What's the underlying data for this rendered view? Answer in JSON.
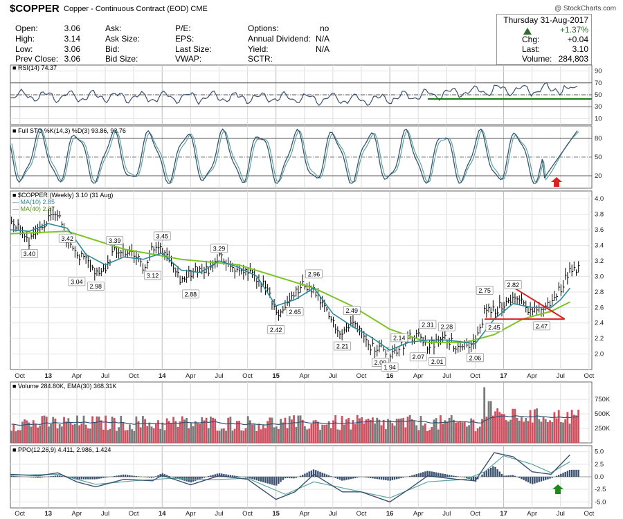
{
  "header": {
    "symbol": "$COPPER",
    "description": "Copper - Continuous Contract (EOD)",
    "exchange": "CME",
    "watermark": "@ StockCharts.com",
    "date": "Thursday  31-Aug-2017",
    "change_pct": "+1.37%",
    "chg_label": "Chg:",
    "chg": "+0.04",
    "last_label": "Last:",
    "last": "3.10",
    "volume_label": "Volume:",
    "volume": "284,803",
    "up_color": "#2a6e2a",
    "fields": [
      {
        "label": "Open:",
        "value": "3.06"
      },
      {
        "label": "High:",
        "value": "3.14"
      },
      {
        "label": "Low:",
        "value": "3.06"
      },
      {
        "label": "Prev Close:",
        "value": "3.06"
      },
      {
        "label": "Ask:",
        "value": ""
      },
      {
        "label": "Ask Size:",
        "value": ""
      },
      {
        "label": "Bid:",
        "value": ""
      },
      {
        "label": "Bid Size:",
        "value": ""
      },
      {
        "label": "P/E:",
        "value": ""
      },
      {
        "label": "EPS:",
        "value": ""
      },
      {
        "label": "Last Size:",
        "value": ""
      },
      {
        "label": "VWAP:",
        "value": ""
      },
      {
        "label": "Options:",
        "value": "no"
      },
      {
        "label": "Annual Dividend:",
        "value": "N/A"
      },
      {
        "label": "Yield:",
        "value": "N/A"
      },
      {
        "label": "SCTR:",
        "value": ""
      }
    ]
  },
  "chart_data": [
    {
      "type": "line",
      "panel": "rsi",
      "legend": "RSI(14) 74.37",
      "series": [
        {
          "name": "RSI(14)",
          "color": "#3a5170",
          "last": 74.37
        }
      ],
      "yticks": [
        10,
        30,
        50,
        70,
        90
      ],
      "ylim": [
        0,
        100
      ],
      "reference_lines": [
        {
          "y": 70,
          "style": "solid"
        },
        {
          "y": 50,
          "style": "dash-dot"
        },
        {
          "y": 30,
          "style": "solid"
        }
      ],
      "annotation": {
        "type": "support-line",
        "color": "#1a7a1a",
        "y": 43,
        "from": "2016-05",
        "to": "2017-08"
      }
    },
    {
      "type": "line",
      "panel": "stochastic",
      "legend": "Full STO %K(14,3) %D(3) 93.86, 92.76",
      "series": [
        {
          "name": "%K(14,3)",
          "color": "#3a5170",
          "last": 93.86
        },
        {
          "name": "%D(3)",
          "color": "#5aa5a0",
          "last": 92.76
        }
      ],
      "yticks": [
        20,
        50,
        80
      ],
      "ylim": [
        0,
        100
      ],
      "annotation": {
        "type": "up-arrow",
        "color": "#e02020",
        "at": "2017-06"
      }
    },
    {
      "type": "line",
      "panel": "price",
      "legend_title": "$COPPER (Weekly) 3.10 (31 Aug)",
      "legend_ma10": "MA(10) 2.85",
      "legend_ma40": "MA(40) 2.67",
      "ylim": [
        1.8,
        4.1
      ],
      "yticks": [
        "4.0",
        "3.8",
        "3.6",
        "3.4",
        "3.2",
        "3.0",
        "2.8",
        "2.6",
        "2.4",
        "2.2",
        "2.0"
      ],
      "x_range": [
        "2012-09",
        "2017-10"
      ],
      "xticks": [
        "Oct",
        "13",
        "Apr",
        "Jul",
        "Oct",
        "14",
        "Apr",
        "Jul",
        "Oct",
        "15",
        "Apr",
        "Jul",
        "Oct",
        "16",
        "Apr",
        "Jul",
        "Oct",
        "17",
        "Apr",
        "Jul",
        "Oct"
      ],
      "price_color": "#000000",
      "ma10_color": "#2a8a9a",
      "ma40_color": "#7ac520",
      "price_path": [
        [
          "2012-09",
          3.72
        ],
        [
          "2012-10",
          3.62
        ],
        [
          "2012-11",
          3.45
        ],
        [
          "2012-12",
          3.62
        ],
        [
          "2013-01",
          3.72
        ],
        [
          "2013-02",
          3.8
        ],
        [
          "2013-03",
          3.45
        ],
        [
          "2013-04",
          3.25
        ],
        [
          "2013-05",
          3.3
        ],
        [
          "2013-06",
          3.04
        ],
        [
          "2013-07",
          3.12
        ],
        [
          "2013-08",
          3.32
        ],
        [
          "2013-09",
          3.3
        ],
        [
          "2013-10",
          3.28
        ],
        [
          "2013-11",
          3.12
        ],
        [
          "2013-12",
          3.35
        ],
        [
          "2014-01",
          3.35
        ],
        [
          "2014-02",
          3.22
        ],
        [
          "2014-03",
          2.95
        ],
        [
          "2014-04",
          3.05
        ],
        [
          "2014-05",
          3.1
        ],
        [
          "2014-06",
          3.08
        ],
        [
          "2014-07",
          3.25
        ],
        [
          "2014-08",
          3.18
        ],
        [
          "2014-09",
          3.05
        ],
        [
          "2014-10",
          3.05
        ],
        [
          "2014-11",
          2.95
        ],
        [
          "2014-12",
          2.85
        ],
        [
          "2015-01",
          2.5
        ],
        [
          "2015-02",
          2.6
        ],
        [
          "2015-03",
          2.78
        ],
        [
          "2015-04",
          2.9
        ],
        [
          "2015-05",
          2.8
        ],
        [
          "2015-06",
          2.6
        ],
        [
          "2015-07",
          2.4
        ],
        [
          "2015-08",
          2.28
        ],
        [
          "2015-09",
          2.4
        ],
        [
          "2015-10",
          2.35
        ],
        [
          "2015-11",
          2.1
        ],
        [
          "2015-12",
          2.08
        ],
        [
          "2016-01",
          2.02
        ],
        [
          "2016-02",
          2.08
        ],
        [
          "2016-03",
          2.2
        ],
        [
          "2016-04",
          2.22
        ],
        [
          "2016-05",
          2.1
        ],
        [
          "2016-06",
          2.15
        ],
        [
          "2016-07",
          2.2
        ],
        [
          "2016-08",
          2.1
        ],
        [
          "2016-09",
          2.15
        ],
        [
          "2016-10",
          2.12
        ],
        [
          "2016-11",
          2.55
        ],
        [
          "2016-12",
          2.55
        ],
        [
          "2017-01",
          2.65
        ],
        [
          "2017-02",
          2.72
        ],
        [
          "2017-03",
          2.65
        ],
        [
          "2017-04",
          2.55
        ],
        [
          "2017-05",
          2.58
        ],
        [
          "2017-06",
          2.65
        ],
        [
          "2017-07",
          2.85
        ],
        [
          "2017-08",
          3.1
        ]
      ],
      "ma10_path": [
        [
          "2012-09",
          3.6
        ],
        [
          "2012-11",
          3.58
        ],
        [
          "2013-01",
          3.68
        ],
        [
          "2013-03",
          3.62
        ],
        [
          "2013-05",
          3.28
        ],
        [
          "2013-07",
          3.15
        ],
        [
          "2013-09",
          3.25
        ],
        [
          "2013-11",
          3.22
        ],
        [
          "2014-01",
          3.3
        ],
        [
          "2014-03",
          3.08
        ],
        [
          "2014-05",
          3.05
        ],
        [
          "2014-07",
          3.2
        ],
        [
          "2014-09",
          3.12
        ],
        [
          "2014-11",
          3.0
        ],
        [
          "2015-01",
          2.62
        ],
        [
          "2015-03",
          2.7
        ],
        [
          "2015-05",
          2.85
        ],
        [
          "2015-07",
          2.52
        ],
        [
          "2015-09",
          2.36
        ],
        [
          "2015-11",
          2.22
        ],
        [
          "2016-01",
          2.05
        ],
        [
          "2016-03",
          2.15
        ],
        [
          "2016-05",
          2.18
        ],
        [
          "2016-07",
          2.18
        ],
        [
          "2016-09",
          2.15
        ],
        [
          "2016-10",
          2.13
        ],
        [
          "2016-12",
          2.45
        ],
        [
          "2017-02",
          2.65
        ],
        [
          "2017-04",
          2.6
        ],
        [
          "2017-06",
          2.6
        ],
        [
          "2017-07",
          2.7
        ],
        [
          "2017-08",
          2.85
        ]
      ],
      "ma40_path": [
        [
          "2012-09",
          3.55
        ],
        [
          "2013-03",
          3.58
        ],
        [
          "2013-09",
          3.35
        ],
        [
          "2014-03",
          3.22
        ],
        [
          "2014-09",
          3.15
        ],
        [
          "2015-01",
          3.0
        ],
        [
          "2015-05",
          2.85
        ],
        [
          "2015-09",
          2.62
        ],
        [
          "2016-01",
          2.32
        ],
        [
          "2016-05",
          2.15
        ],
        [
          "2016-09",
          2.15
        ],
        [
          "2016-12",
          2.25
        ],
        [
          "2017-03",
          2.45
        ],
        [
          "2017-06",
          2.55
        ],
        [
          "2017-08",
          2.67
        ]
      ],
      "peak_labels": [
        {
          "text": "3.40",
          "x": "2012-11",
          "y": 3.4,
          "pos": "below"
        },
        {
          "text": "3.42",
          "x": "2013-03",
          "y": 3.42,
          "pos": "above"
        },
        {
          "text": "3.04",
          "x": "2013-04",
          "y": 3.04,
          "pos": "below"
        },
        {
          "text": "2.98",
          "x": "2013-06",
          "y": 2.98,
          "pos": "below"
        },
        {
          "text": "3.39",
          "x": "2013-08",
          "y": 3.39,
          "pos": "above"
        },
        {
          "text": "3.12",
          "x": "2013-12",
          "y": 3.12,
          "pos": "below"
        },
        {
          "text": "3.45",
          "x": "2014-01",
          "y": 3.45,
          "pos": "above"
        },
        {
          "text": "2.88",
          "x": "2014-04",
          "y": 2.88,
          "pos": "below"
        },
        {
          "text": "3.29",
          "x": "2014-07",
          "y": 3.29,
          "pos": "above"
        },
        {
          "text": "2.42",
          "x": "2015-01",
          "y": 2.42,
          "pos": "below"
        },
        {
          "text": "2.65",
          "x": "2015-03",
          "y": 2.65,
          "pos": "below"
        },
        {
          "text": "2.96",
          "x": "2015-05",
          "y": 2.96,
          "pos": "above"
        },
        {
          "text": "2.49",
          "x": "2015-09",
          "y": 2.49,
          "pos": "above"
        },
        {
          "text": "2.21",
          "x": "2015-08",
          "y": 2.21,
          "pos": "below"
        },
        {
          "text": "2.00",
          "x": "2015-12",
          "y": 2.0,
          "pos": "below"
        },
        {
          "text": "1.94",
          "x": "2016-01",
          "y": 1.94,
          "pos": "below"
        },
        {
          "text": "2.14",
          "x": "2016-02",
          "y": 2.14,
          "pos": "above"
        },
        {
          "text": "2.07",
          "x": "2016-04",
          "y": 2.07,
          "pos": "below"
        },
        {
          "text": "2.31",
          "x": "2016-05",
          "y": 2.31,
          "pos": "above"
        },
        {
          "text": "2.01",
          "x": "2016-06",
          "y": 2.01,
          "pos": "below"
        },
        {
          "text": "2.28",
          "x": "2016-07",
          "y": 2.28,
          "pos": "above"
        },
        {
          "text": "2.06",
          "x": "2016-10",
          "y": 2.06,
          "pos": "below"
        },
        {
          "text": "2.75",
          "x": "2016-11",
          "y": 2.75,
          "pos": "above"
        },
        {
          "text": "2.45",
          "x": "2016-12",
          "y": 2.45,
          "pos": "below"
        },
        {
          "text": "2.82",
          "x": "2017-02",
          "y": 2.82,
          "pos": "above"
        },
        {
          "text": "2.47",
          "x": "2017-05",
          "y": 2.47,
          "pos": "below"
        }
      ],
      "trend_lines": [
        {
          "color": "#e02020",
          "from": [
            "2017-02",
            2.86
          ],
          "to": [
            "2017-07",
            2.45
          ]
        },
        {
          "color": "#e02020",
          "from": [
            "2016-11",
            2.45
          ],
          "to": [
            "2017-07",
            2.45
          ]
        }
      ]
    },
    {
      "type": "bar",
      "panel": "volume",
      "legend": "Volume 284.80K, EMA(30) 368.31K",
      "series": [
        {
          "name": "Volume",
          "up_color": "#7a7a7a",
          "down_color": "#d05060"
        },
        {
          "name": "EMA(30)",
          "color": "#3a5170"
        }
      ],
      "ylim": [
        0,
        1050
      ],
      "yticks": [
        "750K",
        "500K",
        "250K"
      ],
      "spike": {
        "x": "2016-11",
        "value": 960
      }
    },
    {
      "type": "line",
      "panel": "ppo",
      "legend": "PPO(12,26,9) 4.411, 2.986, 1.424",
      "series": [
        {
          "name": "PPO(12,26,9)",
          "color": "#3a5170",
          "last": 4.411
        },
        {
          "name": "Signal",
          "color": "#5aa5a0",
          "last": 2.986
        },
        {
          "name": "Histogram",
          "color": "#3a5170",
          "last": 1.424
        }
      ],
      "ylim": [
        -6.2,
        6.2
      ],
      "yticks": [
        "5.0",
        "2.5",
        "0.0",
        "-2.5",
        "-5.0"
      ],
      "ppo_path": [
        [
          "2012-09",
          0.5
        ],
        [
          "2012-12",
          0.2
        ],
        [
          "2013-02",
          0.8
        ],
        [
          "2013-04",
          -1.0
        ],
        [
          "2013-06",
          -2.0
        ],
        [
          "2013-09",
          -0.5
        ],
        [
          "2013-12",
          -0.8
        ],
        [
          "2014-01",
          0.3
        ],
        [
          "2014-04",
          -1.6
        ],
        [
          "2014-07",
          0.2
        ],
        [
          "2014-10",
          -0.5
        ],
        [
          "2015-01",
          -4.5
        ],
        [
          "2015-03",
          -3.0
        ],
        [
          "2015-05",
          0.5
        ],
        [
          "2015-08",
          -3.0
        ],
        [
          "2015-10",
          -3.0
        ],
        [
          "2016-01",
          -5.0
        ],
        [
          "2016-03",
          -2.5
        ],
        [
          "2016-05",
          0.2
        ],
        [
          "2016-08",
          -0.5
        ],
        [
          "2016-10",
          -0.8
        ],
        [
          "2016-12",
          4.8
        ],
        [
          "2017-02",
          4.0
        ],
        [
          "2017-04",
          1.0
        ],
        [
          "2017-06",
          0.5
        ],
        [
          "2017-08",
          4.4
        ]
      ],
      "signal_path": [
        [
          "2012-09",
          0.3
        ],
        [
          "2013-02",
          0.5
        ],
        [
          "2013-06",
          -1.5
        ],
        [
          "2013-10",
          -0.8
        ],
        [
          "2014-02",
          -0.3
        ],
        [
          "2014-06",
          -0.6
        ],
        [
          "2014-10",
          -0.3
        ],
        [
          "2015-02",
          -3.5
        ],
        [
          "2015-05",
          -1.0
        ],
        [
          "2015-09",
          -2.6
        ],
        [
          "2016-01",
          -4.2
        ],
        [
          "2016-05",
          -1.0
        ],
        [
          "2016-09",
          -0.5
        ],
        [
          "2016-11",
          1.0
        ],
        [
          "2017-01",
          4.2
        ],
        [
          "2017-04",
          2.5
        ],
        [
          "2017-06",
          0.8
        ],
        [
          "2017-08",
          3.0
        ]
      ],
      "annotation": {
        "type": "up-arrow",
        "color": "#1a8a1a",
        "at": "2017-06"
      }
    }
  ]
}
